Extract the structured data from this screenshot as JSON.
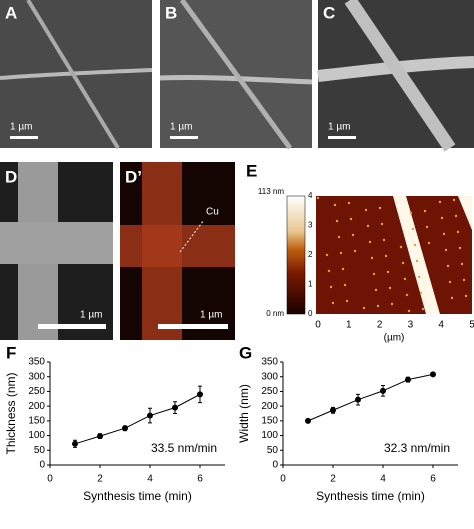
{
  "panels": [
    {
      "label": "A",
      "scale": "1 µm"
    },
    {
      "label": "B",
      "scale": "1 µm"
    },
    {
      "label": "C",
      "scale": "1 µm"
    },
    {
      "label": "D",
      "scale": "1 µm"
    },
    {
      "label": "D’",
      "scale": "1 µm",
      "element": "Cu"
    },
    {
      "label": "E",
      "bar_max": "113 nm",
      "bar_min": "0 nm",
      "bar_ticks": [
        "0",
        "1",
        "2",
        "3",
        "4"
      ],
      "x_ticks": [
        "0",
        "1",
        "2",
        "3",
        "4",
        "5"
      ],
      "x_label": "(µm)"
    }
  ],
  "chart_data": [
    {
      "type": "line",
      "label": "F",
      "ylabel": "Thickness (nm)",
      "xlabel": "Synthesis time (min)",
      "annotation": "33.5 nm/min",
      "x": [
        1,
        2,
        3,
        4,
        5,
        6
      ],
      "series": [
        {
          "color": "#000000",
          "values": [
            72,
            98,
            125,
            168,
            195,
            240
          ],
          "errors": [
            12,
            8,
            8,
            25,
            20,
            28
          ]
        }
      ],
      "xlim": [
        0,
        7
      ],
      "xticks": [
        0,
        2,
        4,
        6
      ],
      "ylim": [
        0,
        350
      ],
      "yticks": [
        0,
        50,
        100,
        150,
        200,
        250,
        300,
        350
      ]
    },
    {
      "type": "line",
      "label": "G",
      "ylabel": "Width (nm)",
      "xlabel": "Synthesis time (min)",
      "annotation": "32.3 nm/min",
      "x": [
        1,
        2,
        3,
        4,
        5,
        6
      ],
      "series": [
        {
          "color": "#000000",
          "values": [
            150,
            186,
            222,
            252,
            290,
            308
          ],
          "errors": [
            6,
            10,
            18,
            18,
            8,
            5
          ]
        }
      ],
      "xlim": [
        0,
        7
      ],
      "xticks": [
        0,
        2,
        4,
        6
      ],
      "ylim": [
        0,
        350
      ],
      "yticks": [
        0,
        50,
        100,
        150,
        200,
        250,
        300,
        350
      ]
    }
  ]
}
